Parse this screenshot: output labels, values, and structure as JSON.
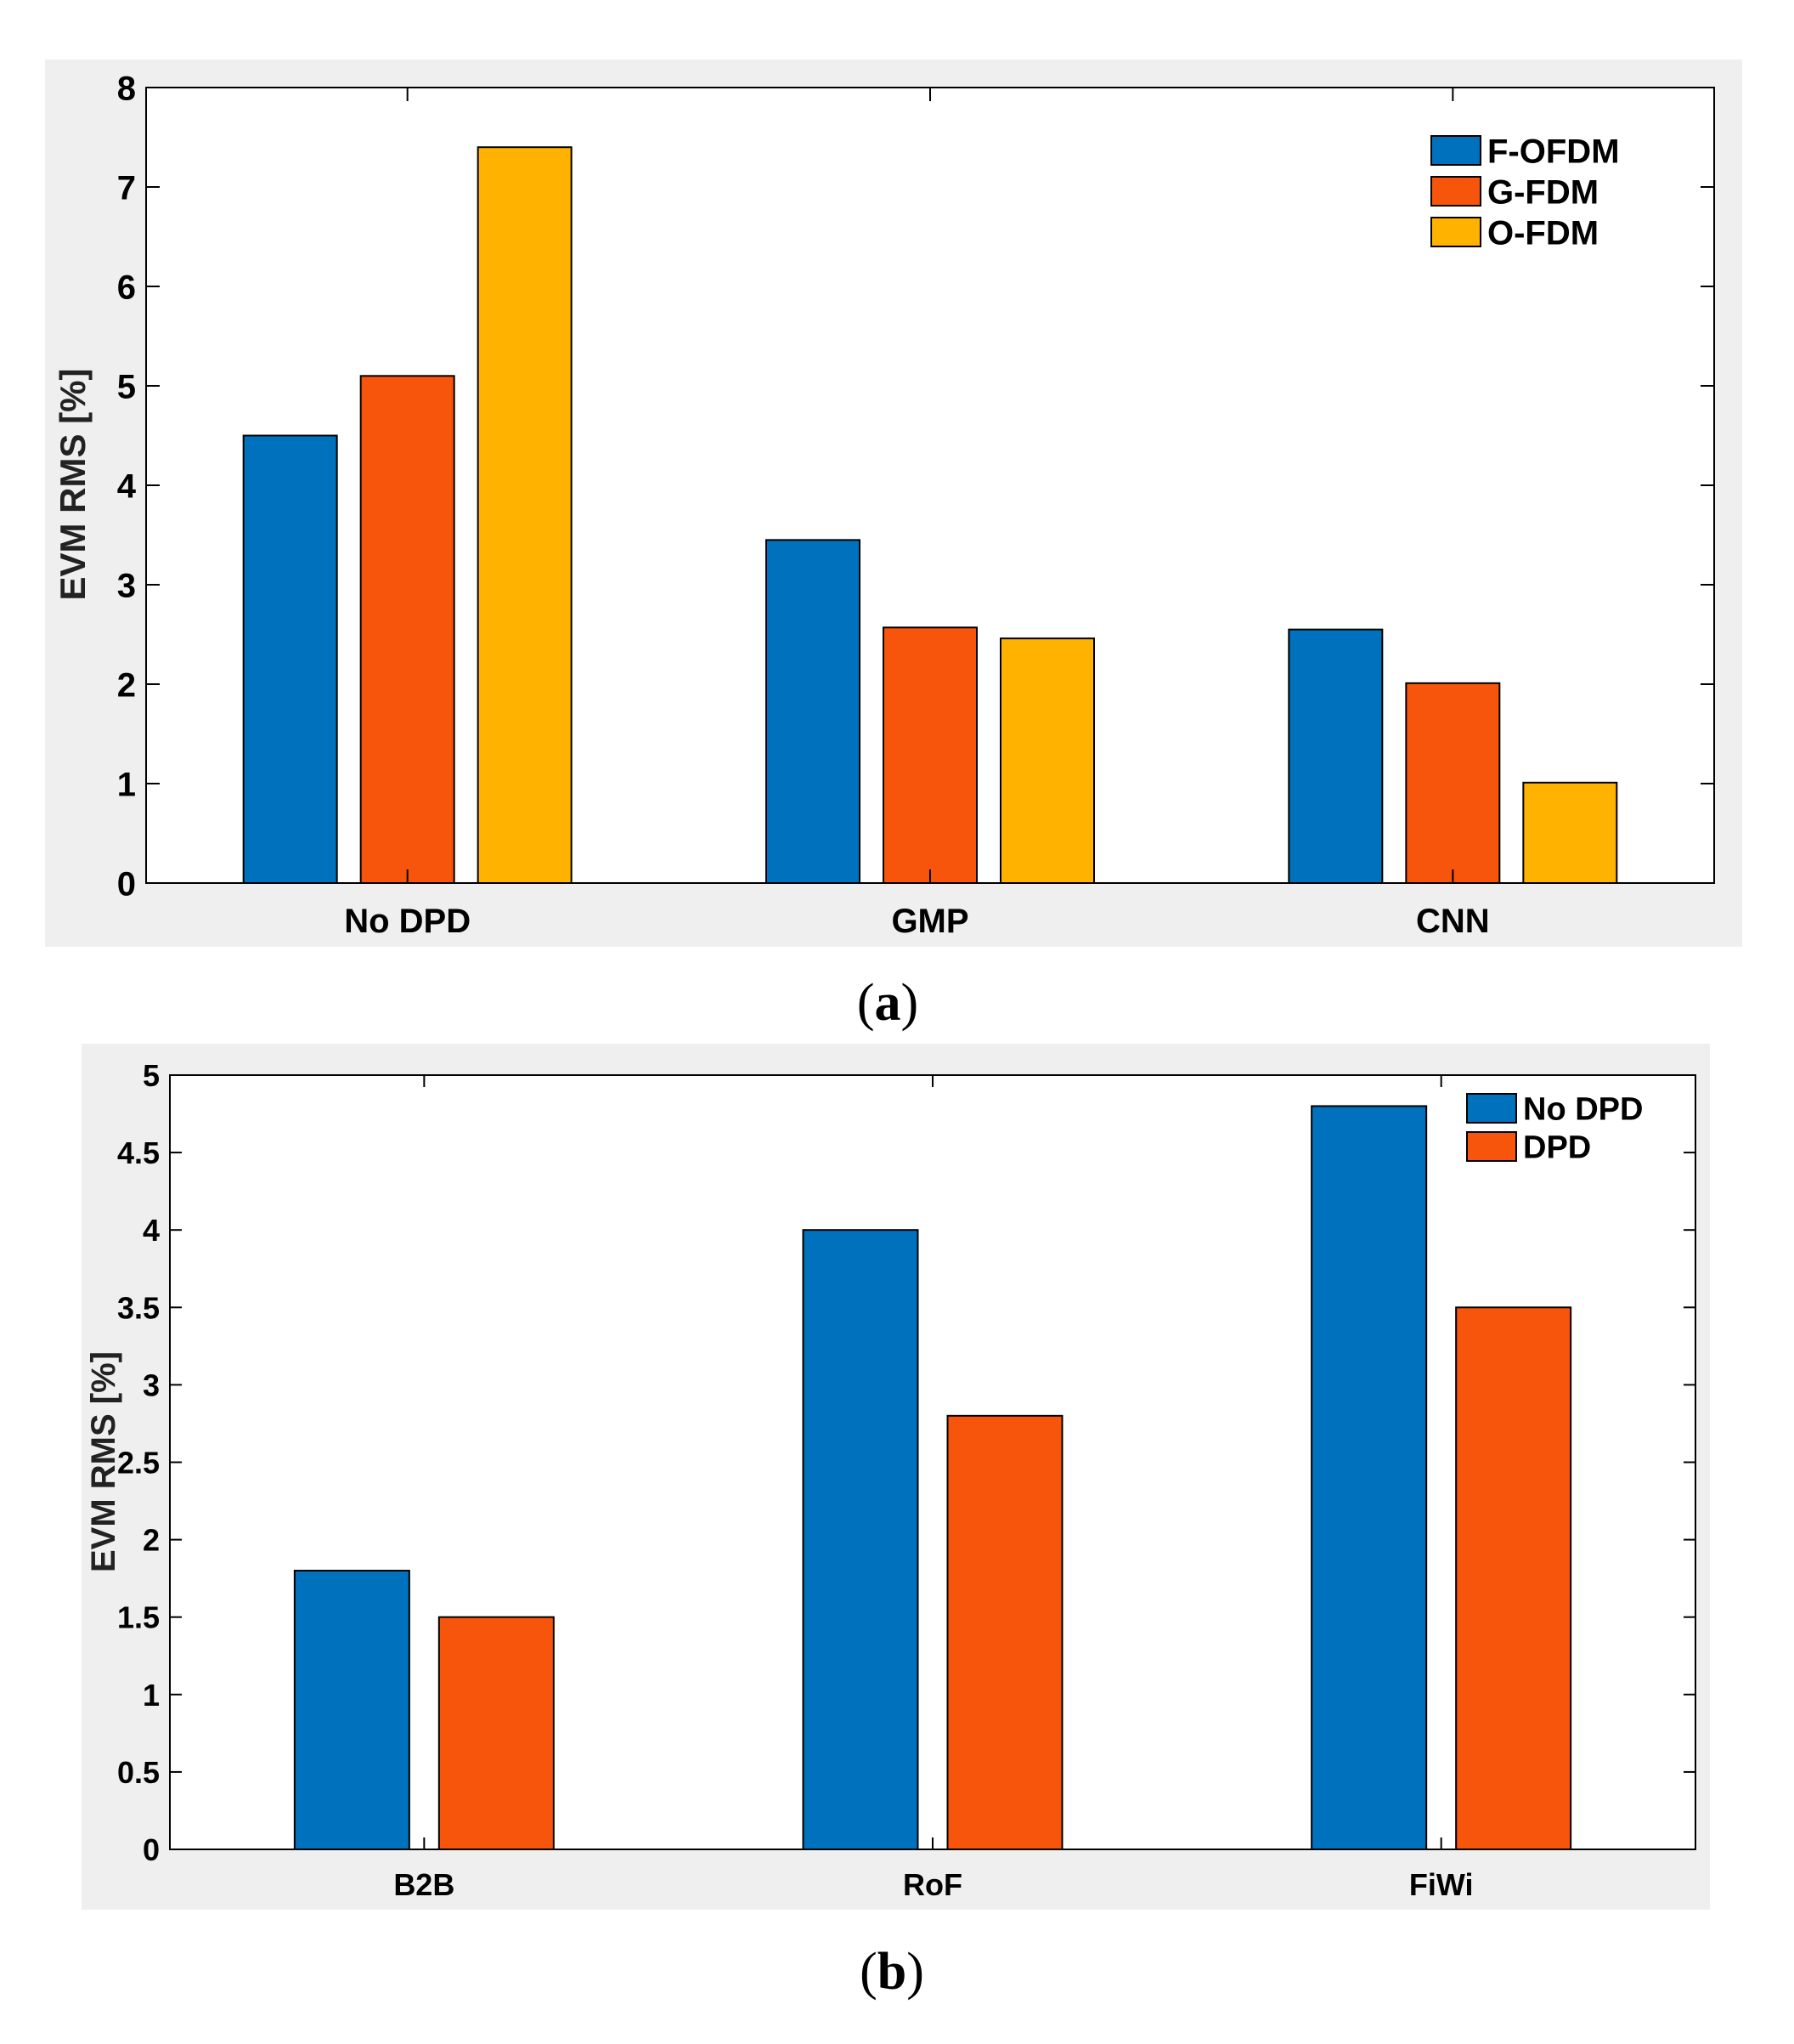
{
  "colors": {
    "blue": "#0072BD",
    "orange": "#F7540C",
    "yellow": "#FFB300",
    "panel_bg": "#EFEFEF"
  },
  "chart_data": [
    {
      "type": "bar",
      "caption_open": "(",
      "caption_letter": "a",
      "caption_close": ")",
      "ylabel": "EVM RMS [%]",
      "xlabel": "",
      "ylim": [
        0,
        8
      ],
      "yticks": [
        "0",
        "1",
        "2",
        "3",
        "4",
        "5",
        "6",
        "7",
        "8"
      ],
      "categories": [
        "No DPD",
        "GMP",
        "CNN"
      ],
      "legend_position": "top-right",
      "series": [
        {
          "name": "F-OFDM",
          "color": "#0072BD",
          "values": [
            4.5,
            3.45,
            2.55
          ]
        },
        {
          "name": "G-FDM",
          "color": "#F7540C",
          "values": [
            5.1,
            2.57,
            2.01
          ]
        },
        {
          "name": "O-FDM",
          "color": "#FFB300",
          "values": [
            7.4,
            2.46,
            1.01
          ]
        }
      ]
    },
    {
      "type": "bar",
      "caption_open": "(",
      "caption_letter": "b",
      "caption_close": ")",
      "ylabel": "EVM RMS [%]",
      "xlabel": "",
      "ylim": [
        0,
        5
      ],
      "yticks": [
        "0",
        "0.5",
        "1",
        "1.5",
        "2",
        "2.5",
        "3",
        "3.5",
        "4",
        "4.5",
        "5"
      ],
      "categories": [
        "B2B",
        "RoF",
        "FiWi"
      ],
      "legend_position": "top-right",
      "series": [
        {
          "name": "No DPD",
          "color": "#0072BD",
          "values": [
            1.8,
            4.0,
            4.8
          ]
        },
        {
          "name": "DPD",
          "color": "#F7540C",
          "values": [
            1.5,
            2.8,
            3.5
          ]
        }
      ]
    }
  ]
}
